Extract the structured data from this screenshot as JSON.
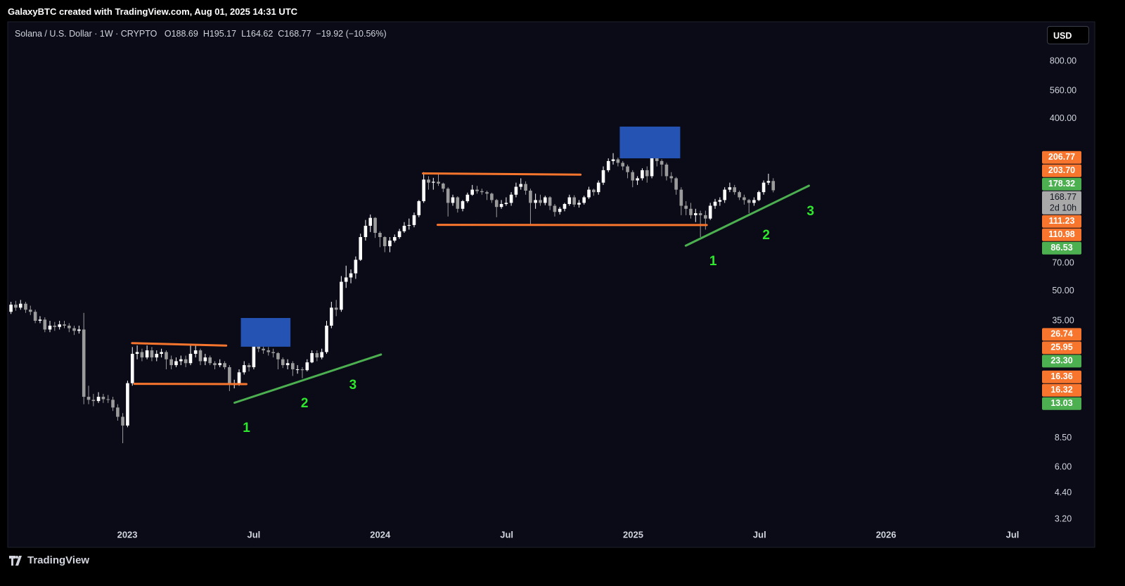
{
  "header": {
    "credit": "GalaxyBTC created with TradingView.com, Aug 01, 2025 14:31 UTC"
  },
  "chart_data": {
    "type": "candlestick",
    "title": "Solana / U.S. Dollar · 1W · CRYPTO",
    "ohlc_legend": [
      "O188.69",
      "H195.17",
      "L164.62",
      "C168.77",
      "−19.92 (−10.56%)"
    ],
    "currency": "USD",
    "x": [
      2022.54,
      2022.559,
      2022.578,
      2022.598,
      2022.617,
      2022.636,
      2022.655,
      2022.674,
      2022.694,
      2022.713,
      2022.732,
      2022.751,
      2022.77,
      2022.79,
      2022.809,
      2022.828,
      2022.847,
      2022.866,
      2022.886,
      2022.905,
      2022.924,
      2022.943,
      2022.962,
      2022.982,
      2023.001,
      2023.02,
      2023.039,
      2023.058,
      2023.078,
      2023.097,
      2023.116,
      2023.135,
      2023.154,
      2023.174,
      2023.193,
      2023.212,
      2023.231,
      2023.25,
      2023.27,
      2023.289,
      2023.308,
      2023.327,
      2023.346,
      2023.366,
      2023.385,
      2023.404,
      2023.423,
      2023.442,
      2023.462,
      2023.481,
      2023.5,
      2023.519,
      2023.538,
      2023.558,
      2023.577,
      2023.596,
      2023.615,
      2023.634,
      2023.654,
      2023.673,
      2023.692,
      2023.711,
      2023.73,
      2023.75,
      2023.769,
      2023.788,
      2023.807,
      2023.826,
      2023.846,
      2023.865,
      2023.884,
      2023.903,
      2023.922,
      2023.942,
      2023.961,
      2023.98,
      2023.999,
      2024.018,
      2024.038,
      2024.057,
      2024.076,
      2024.095,
      2024.114,
      2024.134,
      2024.153,
      2024.172,
      2024.191,
      2024.21,
      2024.23,
      2024.249,
      2024.268,
      2024.287,
      2024.306,
      2024.326,
      2024.345,
      2024.364,
      2024.383,
      2024.402,
      2024.422,
      2024.441,
      2024.46,
      2024.479,
      2024.498,
      2024.518,
      2024.537,
      2024.556,
      2024.575,
      2024.594,
      2024.614,
      2024.633,
      2024.652,
      2024.671,
      2024.69,
      2024.71,
      2024.729,
      2024.748,
      2024.767,
      2024.786,
      2024.806,
      2024.825,
      2024.844,
      2024.863,
      2024.882,
      2024.902,
      2024.921,
      2024.94,
      2024.959,
      2024.978,
      2024.998,
      2025.017,
      2025.036,
      2025.055,
      2025.074,
      2025.094,
      2025.113,
      2025.132,
      2025.151,
      2025.17,
      2025.19,
      2025.209,
      2025.228,
      2025.247,
      2025.266,
      2025.286,
      2025.305,
      2025.324,
      2025.343,
      2025.362,
      2025.382,
      2025.401,
      2025.42,
      2025.439,
      2025.458,
      2025.478,
      2025.497,
      2025.516,
      2025.535,
      2025.554
    ],
    "open": [
      39,
      42.5,
      41,
      43,
      40,
      39,
      35,
      35.5,
      31.5,
      33,
      32.5,
      33.5,
      33,
      32,
      31,
      31.5,
      14,
      13.5,
      13.3,
      14,
      13.6,
      13.5,
      12.3,
      11,
      9.9,
      16.5,
      23.5,
      24,
      22.5,
      24.5,
      22.5,
      23.5,
      24,
      22,
      20.5,
      21.5,
      22,
      21,
      23.5,
      24.5,
      21.5,
      22.5,
      21,
      20.5,
      21,
      20,
      16.2,
      16.5,
      18.8,
      20.5,
      20,
      26.5,
      25,
      24.5,
      24,
      23.7,
      22,
      20.5,
      21,
      19.5,
      19.5,
      19.3,
      21.2,
      23.7,
      22.5,
      24,
      33,
      41,
      40,
      56,
      59,
      62,
      73,
      96,
      110,
      121,
      101,
      96,
      86,
      92,
      96,
      103,
      110,
      111,
      125,
      148,
      192,
      185,
      187,
      183,
      172,
      145,
      155,
      135,
      148,
      160,
      170,
      167,
      165,
      162,
      150,
      138,
      143,
      145,
      160,
      176,
      182,
      168,
      145,
      150,
      145,
      155,
      140,
      130,
      135,
      143,
      155,
      142,
      145,
      155,
      170,
      165,
      185,
      215,
      240,
      245,
      235,
      225,
      210,
      190,
      195,
      215,
      200,
      250,
      240,
      230,
      200,
      195,
      170,
      140,
      135,
      125,
      128,
      125,
      120,
      140,
      147,
      150,
      170,
      175,
      165,
      155,
      150,
      145,
      150,
      165,
      185,
      188.69
    ],
    "high": [
      44,
      44.5,
      45,
      44,
      42,
      40,
      37,
      36.5,
      35,
      34.5,
      35,
      35,
      34,
      33,
      33,
      38.5,
      16,
      14.5,
      14.8,
      14.5,
      14.3,
      14,
      12.8,
      11.5,
      17,
      25.5,
      26,
      25,
      26,
      25.5,
      24.5,
      25,
      24.5,
      23,
      22.5,
      23,
      23,
      26,
      26,
      25,
      23.5,
      23,
      21.5,
      22,
      21.5,
      20.5,
      17.2,
      19.5,
      21.5,
      21,
      32,
      28,
      26,
      25.5,
      25,
      24,
      22.5,
      22,
      21.5,
      20.5,
      20,
      22,
      24.5,
      24.5,
      25,
      35,
      44,
      45,
      60,
      68,
      65,
      76,
      100,
      118,
      126,
      122,
      103,
      97,
      96,
      99,
      106,
      115,
      120,
      129,
      150,
      210,
      200,
      196,
      205,
      185,
      175,
      160,
      157,
      150,
      164,
      180,
      178,
      172,
      168,
      164,
      152,
      150,
      155,
      165,
      185,
      195,
      188,
      172,
      162,
      160,
      158,
      157,
      143,
      138,
      145,
      160,
      159,
      150,
      158,
      176,
      172,
      190,
      225,
      248,
      264,
      250,
      240,
      230,
      215,
      200,
      220,
      225,
      295,
      260,
      245,
      235,
      210,
      198,
      175,
      148,
      145,
      135,
      132,
      132,
      145,
      152,
      155,
      175,
      185,
      180,
      168,
      160,
      152,
      155,
      168,
      190,
      206,
      195.17
    ],
    "low": [
      38,
      39.5,
      40,
      38.5,
      37.5,
      34,
      34,
      30.5,
      30.5,
      31,
      31.5,
      32,
      30.5,
      29.5,
      30,
      12.8,
      12.8,
      12.5,
      13,
      13,
      13,
      11.8,
      10.5,
      8,
      9.7,
      16,
      22,
      21.5,
      22,
      21.5,
      21.5,
      22.5,
      19.5,
      19.5,
      20,
      20.5,
      20,
      20.5,
      22.5,
      20.5,
      20.5,
      20.5,
      19.5,
      20,
      19.5,
      15,
      15.5,
      16,
      18.3,
      19,
      19.5,
      24,
      23.5,
      23,
      22.5,
      19.5,
      19.8,
      19.5,
      18,
      18.5,
      17.5,
      19,
      21,
      21.5,
      22,
      23.5,
      32,
      37,
      39,
      52,
      55,
      58,
      72,
      92,
      102,
      95,
      85,
      80,
      80,
      90,
      94,
      101,
      105,
      108,
      122,
      145,
      170,
      170,
      178,
      165,
      123,
      140,
      129,
      131,
      145,
      158,
      162,
      160,
      150,
      145,
      122,
      135,
      140,
      140,
      155,
      170,
      160,
      110,
      135,
      140,
      141,
      133,
      123,
      126,
      131,
      140,
      138,
      137,
      142,
      152,
      158,
      160,
      180,
      210,
      230,
      225,
      215,
      195,
      175,
      180,
      190,
      185,
      195,
      225,
      200,
      190,
      185,
      160,
      125,
      125,
      120,
      115,
      96,
      105,
      118,
      135,
      140,
      145,
      165,
      160,
      150,
      142,
      128,
      140,
      148,
      160,
      180,
      164.62
    ],
    "close": [
      42.5,
      41,
      43,
      40,
      39,
      35,
      35.5,
      31.5,
      33,
      32.5,
      33.5,
      33,
      32,
      31,
      31.5,
      14,
      13.5,
      13.3,
      14,
      13.6,
      13.5,
      12.3,
      11,
      9.9,
      16.5,
      23.5,
      24,
      22.5,
      24.5,
      22.5,
      23.5,
      24,
      22,
      20.5,
      21.5,
      22,
      21,
      23.5,
      24.5,
      21.5,
      22.5,
      21,
      20.5,
      21,
      20,
      16.2,
      16.5,
      18.8,
      20.5,
      20,
      26.5,
      25,
      24.5,
      24,
      23.7,
      22,
      20.5,
      21,
      19.5,
      19.5,
      19.3,
      21.2,
      23.7,
      22.5,
      24,
      33,
      41,
      40,
      56,
      59,
      62,
      73,
      96,
      110,
      121,
      101,
      96,
      86,
      92,
      96,
      103,
      110,
      111,
      125,
      148,
      192,
      185,
      187,
      183,
      172,
      145,
      155,
      135,
      148,
      160,
      170,
      167,
      165,
      162,
      150,
      138,
      143,
      145,
      160,
      176,
      182,
      168,
      145,
      150,
      145,
      155,
      140,
      130,
      135,
      143,
      155,
      142,
      145,
      155,
      170,
      165,
      185,
      215,
      240,
      245,
      235,
      225,
      210,
      190,
      195,
      215,
      200,
      250,
      240,
      230,
      200,
      195,
      170,
      140,
      135,
      125,
      128,
      125,
      120,
      140,
      147,
      150,
      170,
      175,
      165,
      155,
      150,
      145,
      150,
      165,
      185,
      188.69,
      168.77
    ],
    "up_color": "#ffffff",
    "down_color": "#9b9b9b",
    "xlim": [
      2022.53,
      2026.6
    ],
    "xticks": [
      2023,
      {
        "value": 2023.5,
        "label": "Jul"
      },
      2024,
      {
        "value": 2024.5,
        "label": "Jul"
      },
      2025,
      {
        "value": 2025.5,
        "label": "Jul"
      },
      2026,
      {
        "value": 2026.5,
        "label": "Jul"
      }
    ],
    "ylim": [
      2.34,
      1275
    ],
    "log_scale": true,
    "yticks": [
      {
        "value": 800,
        "label": "800.00"
      },
      {
        "value": 560,
        "label": "560.00"
      },
      {
        "value": 400,
        "label": "400.00"
      },
      {
        "value": 70,
        "label": "70.00"
      },
      {
        "value": 50,
        "label": "50.00"
      },
      {
        "value": 35,
        "label": "35.00"
      },
      {
        "value": 8.5,
        "label": "8.50"
      },
      {
        "value": 6,
        "label": "6.00"
      },
      {
        "value": 4.4,
        "label": "4.40"
      },
      {
        "value": 3.2,
        "label": "3.20"
      }
    ],
    "trend_lines": [
      {
        "color": "#f7752d",
        "x": [
          2023.019,
          2023.391
        ],
        "y": [
          26.74,
          25.95
        ]
      },
      {
        "color": "#f7752d",
        "x": [
          2023.028,
          2023.471
        ],
        "y": [
          16.36,
          16.32
        ]
      },
      {
        "color": "#4caf50",
        "x": [
          2023.424,
          2024.003
        ],
        "y": [
          13.03,
          23.3
        ],
        "y_labels": [
          "13.03",
          "23.30"
        ]
      },
      {
        "color": "#f7752d",
        "x": [
          2024.169,
          2024.792
        ],
        "y": [
          206.77,
          203.7
        ],
        "y_labels": [
          "206.77",
          "203.70"
        ]
      },
      {
        "color": "#f7752d",
        "x": [
          2024.227,
          2025.291
        ],
        "y": [
          111.23,
          110.98
        ]
      },
      {
        "color": "#4caf50",
        "x": [
          2025.208,
          2025.695
        ],
        "y": [
          86.53,
          178.32
        ]
      }
    ],
    "rectangles": [
      {
        "color": "#2453b3",
        "x": [
          2023.449,
          2023.645
        ],
        "y": [
          36.2,
          25.6
        ]
      },
      {
        "color": "#2453b3",
        "x": [
          2024.947,
          2025.186
        ],
        "y": [
          363.6,
          248
        ]
      }
    ],
    "annotations": [
      {
        "text": "1",
        "x": 2023.471,
        "y": 9.56,
        "color": "#2ee82e"
      },
      {
        "text": "2",
        "x": 2023.701,
        "y": 12.86,
        "color": "#2ee82e"
      },
      {
        "text": "3",
        "x": 2023.892,
        "y": 16.04,
        "color": "#2ee82e"
      },
      {
        "text": "1",
        "x": 2025.316,
        "y": 71.4,
        "color": "#2ee82e"
      },
      {
        "text": "2",
        "x": 2025.526,
        "y": 97.7,
        "color": "#2ee82e"
      },
      {
        "text": "3",
        "x": 2025.701,
        "y": 130.3,
        "color": "#2ee82e"
      }
    ],
    "last_price": {
      "value": 168.77,
      "countdown": "2d 10h",
      "color": "#a9a9a9"
    }
  },
  "footer": {
    "brand": "TradingView"
  }
}
